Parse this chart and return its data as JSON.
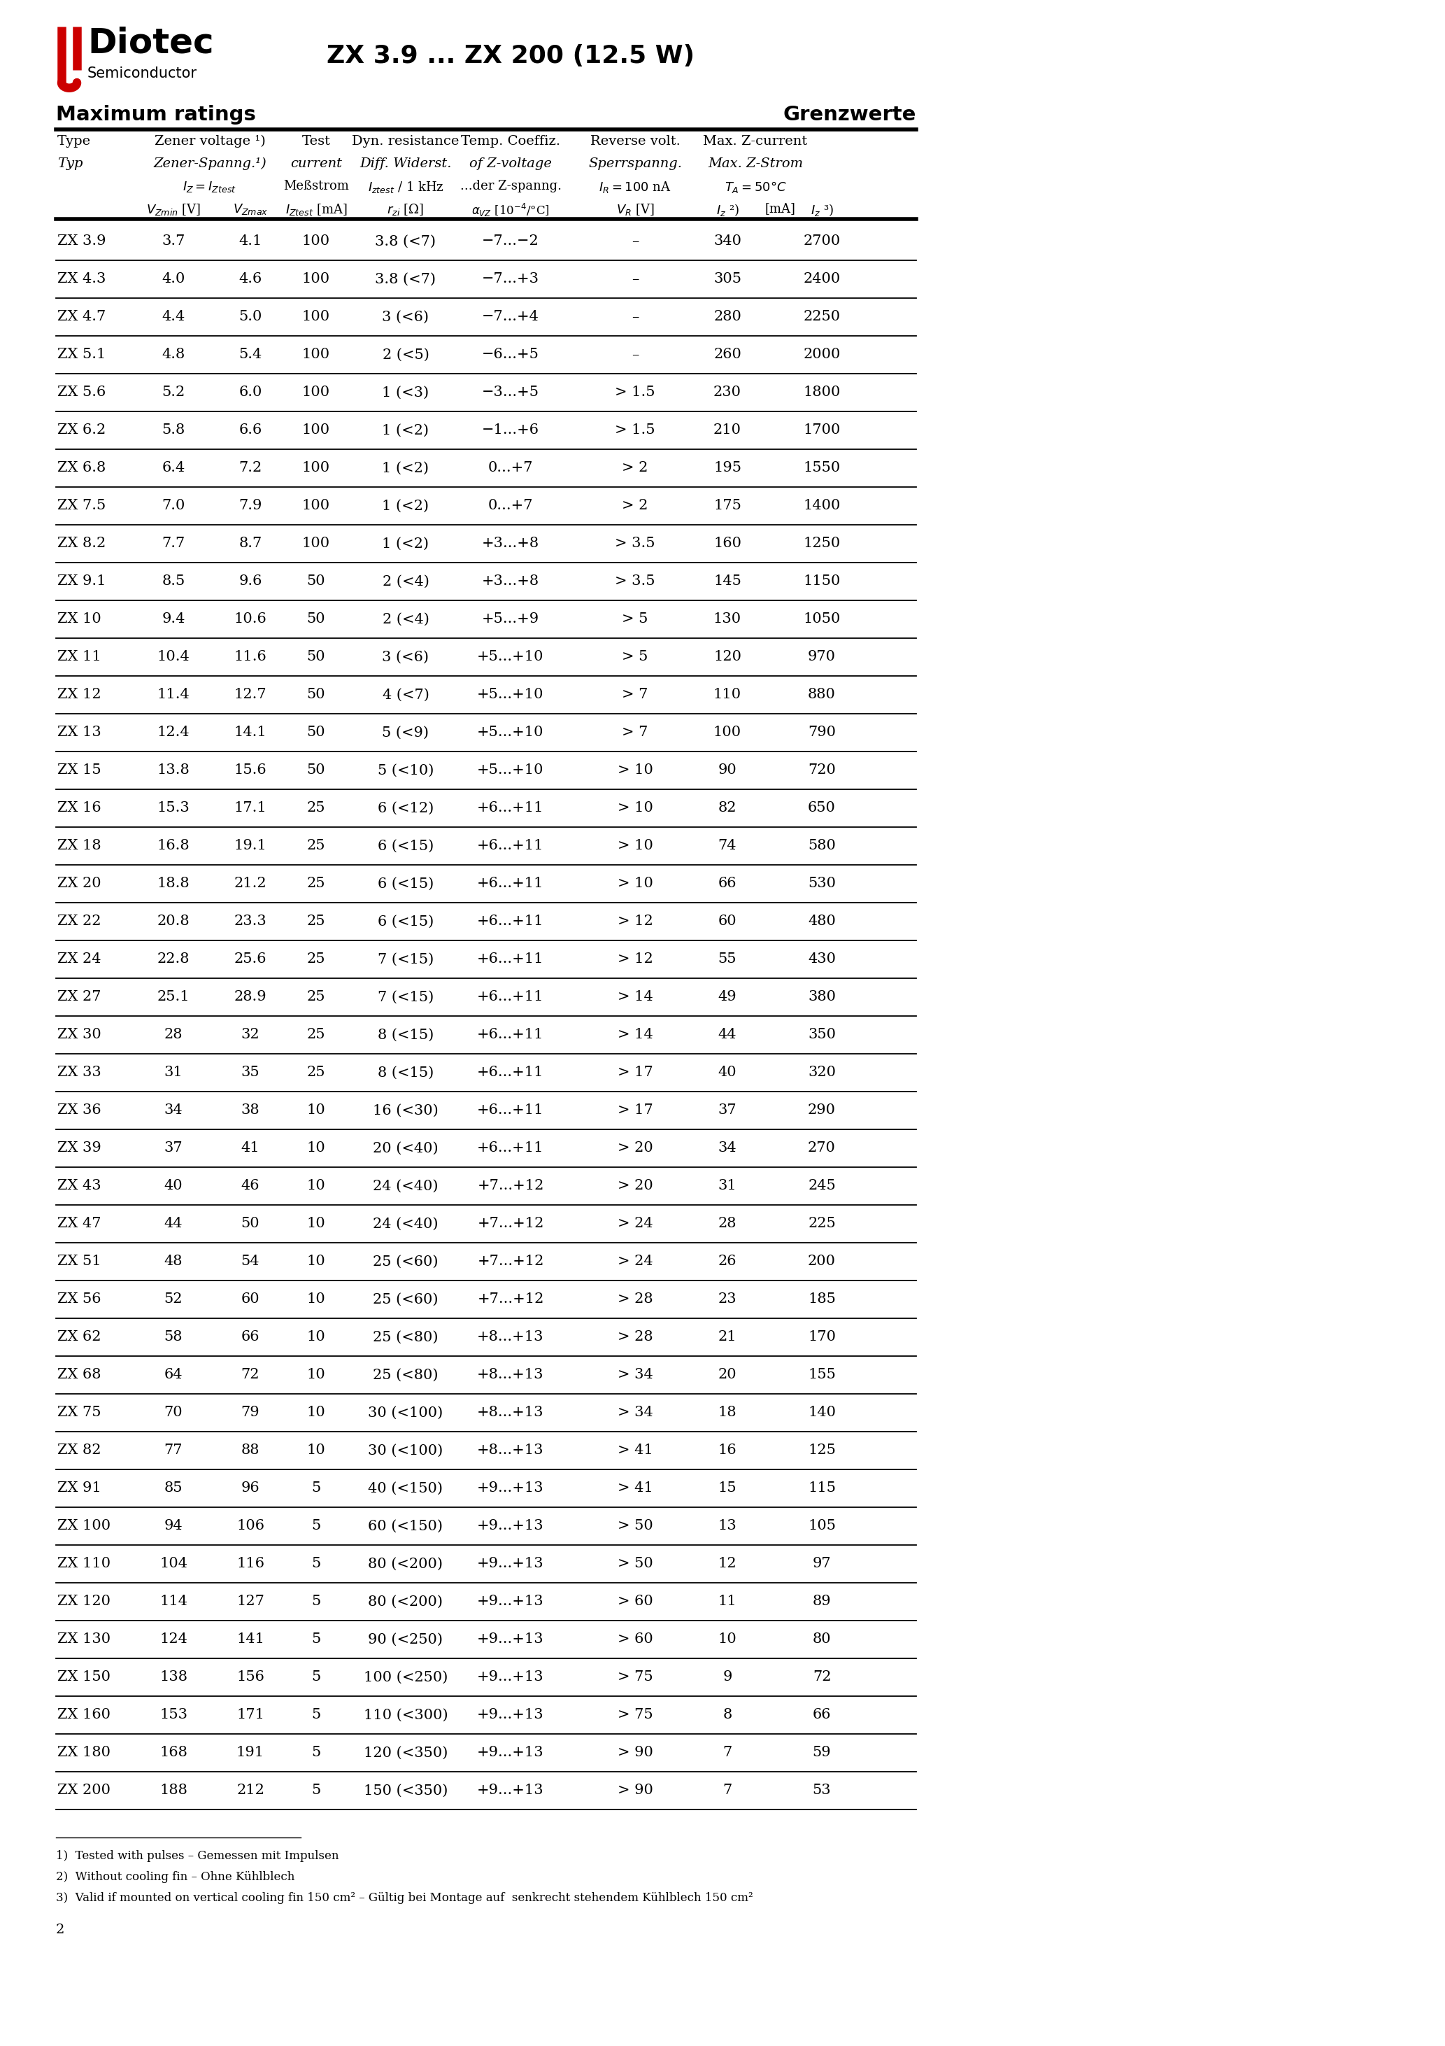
{
  "title": "ZX 3.9 ... ZX 200 (12.5 W)",
  "page_num": "2",
  "section_left": "Maximum ratings",
  "section_right": "Grenzwerte",
  "footnotes": [
    "1)  Tested with pulses – Gemessen mit Impulsen",
    "2)  Without cooling fin – Ohne Kühlblech",
    "3)  Valid if mounted on vertical cooling fin 150 cm² – Gültig bei Montage auf  senkrecht stehendem Kühlblech 150 cm²"
  ],
  "rows": [
    [
      "ZX 3.9",
      "3.7",
      "4.1",
      "100",
      "3.8 (<7)",
      "−7...−2",
      "–",
      "340",
      "2700"
    ],
    [
      "ZX 4.3",
      "4.0",
      "4.6",
      "100",
      "3.8 (<7)",
      "−7...+3",
      "–",
      "305",
      "2400"
    ],
    [
      "ZX 4.7",
      "4.4",
      "5.0",
      "100",
      "3 (<6)",
      "−7...+4",
      "–",
      "280",
      "2250"
    ],
    [
      "ZX 5.1",
      "4.8",
      "5.4",
      "100",
      "2 (<5)",
      "−6...+5",
      "–",
      "260",
      "2000"
    ],
    [
      "ZX 5.6",
      "5.2",
      "6.0",
      "100",
      "1 (<3)",
      "−3...+5",
      "> 1.5",
      "230",
      "1800"
    ],
    [
      "ZX 6.2",
      "5.8",
      "6.6",
      "100",
      "1 (<2)",
      "−1...+6",
      "> 1.5",
      "210",
      "1700"
    ],
    [
      "ZX 6.8",
      "6.4",
      "7.2",
      "100",
      "1 (<2)",
      "0...+7",
      "> 2",
      "195",
      "1550"
    ],
    [
      "ZX 7.5",
      "7.0",
      "7.9",
      "100",
      "1 (<2)",
      "0...+7",
      "> 2",
      "175",
      "1400"
    ],
    [
      "ZX 8.2",
      "7.7",
      "8.7",
      "100",
      "1 (<2)",
      "+3...+8",
      "> 3.5",
      "160",
      "1250"
    ],
    [
      "ZX 9.1",
      "8.5",
      "9.6",
      "50",
      "2 (<4)",
      "+3...+8",
      "> 3.5",
      "145",
      "1150"
    ],
    [
      "ZX 10",
      "9.4",
      "10.6",
      "50",
      "2 (<4)",
      "+5...+9",
      "> 5",
      "130",
      "1050"
    ],
    [
      "ZX 11",
      "10.4",
      "11.6",
      "50",
      "3 (<6)",
      "+5...+10",
      "> 5",
      "120",
      "970"
    ],
    [
      "ZX 12",
      "11.4",
      "12.7",
      "50",
      "4 (<7)",
      "+5...+10",
      "> 7",
      "110",
      "880"
    ],
    [
      "ZX 13",
      "12.4",
      "14.1",
      "50",
      "5 (<9)",
      "+5...+10",
      "> 7",
      "100",
      "790"
    ],
    [
      "ZX 15",
      "13.8",
      "15.6",
      "50",
      "5 (<10)",
      "+5...+10",
      "> 10",
      "90",
      "720"
    ],
    [
      "ZX 16",
      "15.3",
      "17.1",
      "25",
      "6 (<12)",
      "+6...+11",
      "> 10",
      "82",
      "650"
    ],
    [
      "ZX 18",
      "16.8",
      "19.1",
      "25",
      "6 (<15)",
      "+6...+11",
      "> 10",
      "74",
      "580"
    ],
    [
      "ZX 20",
      "18.8",
      "21.2",
      "25",
      "6 (<15)",
      "+6...+11",
      "> 10",
      "66",
      "530"
    ],
    [
      "ZX 22",
      "20.8",
      "23.3",
      "25",
      "6 (<15)",
      "+6...+11",
      "> 12",
      "60",
      "480"
    ],
    [
      "ZX 24",
      "22.8",
      "25.6",
      "25",
      "7 (<15)",
      "+6...+11",
      "> 12",
      "55",
      "430"
    ],
    [
      "ZX 27",
      "25.1",
      "28.9",
      "25",
      "7 (<15)",
      "+6...+11",
      "> 14",
      "49",
      "380"
    ],
    [
      "ZX 30",
      "28",
      "32",
      "25",
      "8 (<15)",
      "+6...+11",
      "> 14",
      "44",
      "350"
    ],
    [
      "ZX 33",
      "31",
      "35",
      "25",
      "8 (<15)",
      "+6...+11",
      "> 17",
      "40",
      "320"
    ],
    [
      "ZX 36",
      "34",
      "38",
      "10",
      "16 (<30)",
      "+6...+11",
      "> 17",
      "37",
      "290"
    ],
    [
      "ZX 39",
      "37",
      "41",
      "10",
      "20 (<40)",
      "+6...+11",
      "> 20",
      "34",
      "270"
    ],
    [
      "ZX 43",
      "40",
      "46",
      "10",
      "24 (<40)",
      "+7...+12",
      "> 20",
      "31",
      "245"
    ],
    [
      "ZX 47",
      "44",
      "50",
      "10",
      "24 (<40)",
      "+7...+12",
      "> 24",
      "28",
      "225"
    ],
    [
      "ZX 51",
      "48",
      "54",
      "10",
      "25 (<60)",
      "+7...+12",
      "> 24",
      "26",
      "200"
    ],
    [
      "ZX 56",
      "52",
      "60",
      "10",
      "25 (<60)",
      "+7...+12",
      "> 28",
      "23",
      "185"
    ],
    [
      "ZX 62",
      "58",
      "66",
      "10",
      "25 (<80)",
      "+8...+13",
      "> 28",
      "21",
      "170"
    ],
    [
      "ZX 68",
      "64",
      "72",
      "10",
      "25 (<80)",
      "+8...+13",
      "> 34",
      "20",
      "155"
    ],
    [
      "ZX 75",
      "70",
      "79",
      "10",
      "30 (<100)",
      "+8...+13",
      "> 34",
      "18",
      "140"
    ],
    [
      "ZX 82",
      "77",
      "88",
      "10",
      "30 (<100)",
      "+8...+13",
      "> 41",
      "16",
      "125"
    ],
    [
      "ZX 91",
      "85",
      "96",
      "5",
      "40 (<150)",
      "+9...+13",
      "> 41",
      "15",
      "115"
    ],
    [
      "ZX 100",
      "94",
      "106",
      "5",
      "60 (<150)",
      "+9...+13",
      "> 50",
      "13",
      "105"
    ],
    [
      "ZX 110",
      "104",
      "116",
      "5",
      "80 (<200)",
      "+9...+13",
      "> 50",
      "12",
      "97"
    ],
    [
      "ZX 120",
      "114",
      "127",
      "5",
      "80 (<200)",
      "+9...+13",
      "> 60",
      "11",
      "89"
    ],
    [
      "ZX 130",
      "124",
      "141",
      "5",
      "90 (<250)",
      "+9...+13",
      "> 60",
      "10",
      "80"
    ],
    [
      "ZX 150",
      "138",
      "156",
      "5",
      "100 (<250)",
      "+9...+13",
      "> 75",
      "9",
      "72"
    ],
    [
      "ZX 160",
      "153",
      "171",
      "5",
      "110 (<300)",
      "+9...+13",
      "> 75",
      "8",
      "66"
    ],
    [
      "ZX 180",
      "168",
      "191",
      "5",
      "120 (<350)",
      "+9...+13",
      "> 90",
      "7",
      "59"
    ],
    [
      "ZX 200",
      "188",
      "212",
      "5",
      "150 (<350)",
      "+9...+13",
      "> 90",
      "7",
      "53"
    ]
  ]
}
